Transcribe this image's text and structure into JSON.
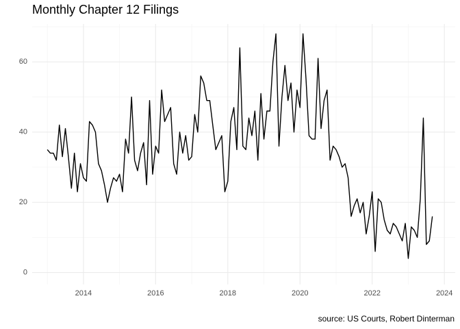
{
  "chart_data": {
    "type": "line",
    "title": "Monthly Chapter 12 Filings",
    "caption": "source: US Courts, Robert Dinterman",
    "x": [
      2013,
      2013.083,
      2013.167,
      2013.25,
      2013.333,
      2013.417,
      2013.5,
      2013.583,
      2013.667,
      2013.75,
      2013.833,
      2013.917,
      2014,
      2014.083,
      2014.167,
      2014.25,
      2014.333,
      2014.417,
      2014.5,
      2014.583,
      2014.667,
      2014.75,
      2014.833,
      2014.917,
      2015,
      2015.083,
      2015.167,
      2015.25,
      2015.333,
      2015.417,
      2015.5,
      2015.583,
      2015.667,
      2015.75,
      2015.833,
      2015.917,
      2016,
      2016.083,
      2016.167,
      2016.25,
      2016.333,
      2016.417,
      2016.5,
      2016.583,
      2016.667,
      2016.75,
      2016.833,
      2016.917,
      2017,
      2017.083,
      2017.167,
      2017.25,
      2017.333,
      2017.417,
      2017.5,
      2017.583,
      2017.667,
      2017.75,
      2017.833,
      2017.917,
      2018,
      2018.083,
      2018.167,
      2018.25,
      2018.333,
      2018.417,
      2018.5,
      2018.583,
      2018.667,
      2018.75,
      2018.833,
      2018.917,
      2019,
      2019.083,
      2019.167,
      2019.25,
      2019.333,
      2019.417,
      2019.5,
      2019.583,
      2019.667,
      2019.75,
      2019.833,
      2019.917,
      2020,
      2020.083,
      2020.167,
      2020.25,
      2020.333,
      2020.417,
      2020.5,
      2020.583,
      2020.667,
      2020.75,
      2020.833,
      2020.917,
      2021,
      2021.083,
      2021.167,
      2021.25,
      2021.333,
      2021.417,
      2021.5,
      2021.583,
      2021.667,
      2021.75,
      2021.833,
      2021.917,
      2022,
      2022.083,
      2022.167,
      2022.25,
      2022.333,
      2022.417,
      2022.5,
      2022.583,
      2022.667,
      2022.75,
      2022.833,
      2022.917,
      2023,
      2023.083,
      2023.167,
      2023.25,
      2023.333,
      2023.417,
      2023.5,
      2023.583,
      2023.667
    ],
    "values": [
      35,
      34,
      34,
      32,
      42,
      33,
      41,
      33,
      24,
      34,
      23,
      31,
      27,
      26,
      43,
      42,
      40,
      31,
      29,
      25,
      20,
      24,
      27,
      26,
      28,
      23,
      38,
      34,
      50,
      32,
      29,
      34,
      37,
      25,
      49,
      28,
      36,
      34,
      52,
      43,
      45,
      47,
      31,
      28,
      40,
      34,
      39,
      32,
      33,
      45,
      40,
      56,
      54,
      49,
      49,
      42,
      35,
      37,
      39,
      23,
      26,
      43,
      47,
      35,
      64,
      36,
      35,
      44,
      39,
      46,
      32,
      51,
      38,
      46,
      46,
      60,
      68,
      36,
      50,
      59,
      49,
      54,
      40,
      52,
      47,
      68,
      55,
      39,
      38,
      38,
      61,
      41,
      49,
      52,
      32,
      36,
      35,
      33,
      30,
      31,
      27,
      16,
      19,
      21,
      17,
      20,
      11,
      16,
      23,
      6,
      21,
      20,
      15,
      12,
      11,
      14,
      13,
      11,
      9,
      14,
      4,
      13,
      12,
      10,
      21,
      44,
      8,
      9,
      16
    ],
    "color": "#000000",
    "xlim": [
      2012.58,
      2024.3
    ],
    "xticks": [
      2014,
      2016,
      2018,
      2020,
      2022,
      2024
    ],
    "ylim": [
      -3.4,
      70.8
    ],
    "yticks": [
      0,
      20,
      40,
      60
    ],
    "grid": true,
    "minor_grid": true
  }
}
